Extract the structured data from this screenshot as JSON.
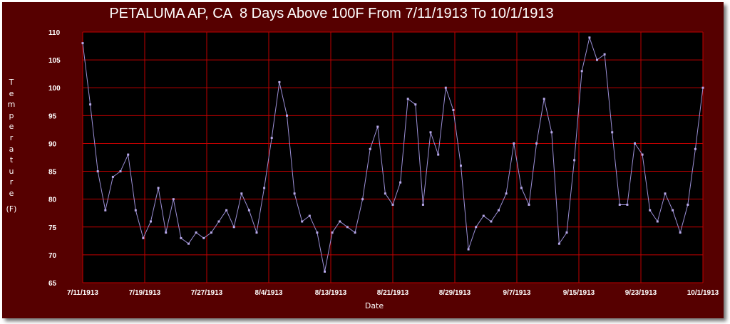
{
  "chart_data": {
    "type": "line",
    "title": "PETALUMA AP, CA  8 Days Above 100F From 7/11/1913 To 10/1/1913",
    "xlabel": "Date",
    "ylabel": "Temperature",
    "ylabel_unit": "(F)",
    "ylim": [
      65,
      110
    ],
    "yticks": [
      65,
      70,
      75,
      80,
      85,
      90,
      95,
      100,
      105,
      110
    ],
    "xticks": [
      "7/11/1913",
      "7/19/1913",
      "7/27/1913",
      "8/4/1913",
      "8/13/1913",
      "8/21/1913",
      "8/29/1913",
      "9/7/1913",
      "9/15/1913",
      "9/23/1913",
      "10/1/1913"
    ],
    "grid": true,
    "colors": {
      "background": "#560000",
      "plot_area": "#000000",
      "grid": "#c00000",
      "line": "#9b8fd6",
      "marker": "#b7a8ea",
      "text": "#ffffff"
    },
    "series": [
      {
        "start_date": "7/11/1913",
        "values": [
          108,
          97,
          85,
          78,
          84,
          85,
          88,
          78,
          73,
          76,
          82,
          74,
          80,
          73,
          72,
          74,
          73,
          74,
          76,
          78,
          75,
          81,
          78,
          74,
          82,
          91,
          101,
          95,
          81,
          76,
          77,
          74,
          67,
          74,
          76,
          75,
          74,
          80,
          89,
          93,
          81,
          79,
          83,
          98,
          97,
          79,
          92,
          88,
          100,
          96,
          86,
          71,
          75,
          77,
          76,
          78,
          81,
          90,
          82,
          79,
          90,
          98,
          92,
          72,
          74,
          87,
          103,
          109,
          105,
          106,
          92,
          79,
          79,
          90,
          88,
          78,
          76,
          81,
          78,
          74,
          79,
          89,
          100
        ]
      }
    ]
  }
}
